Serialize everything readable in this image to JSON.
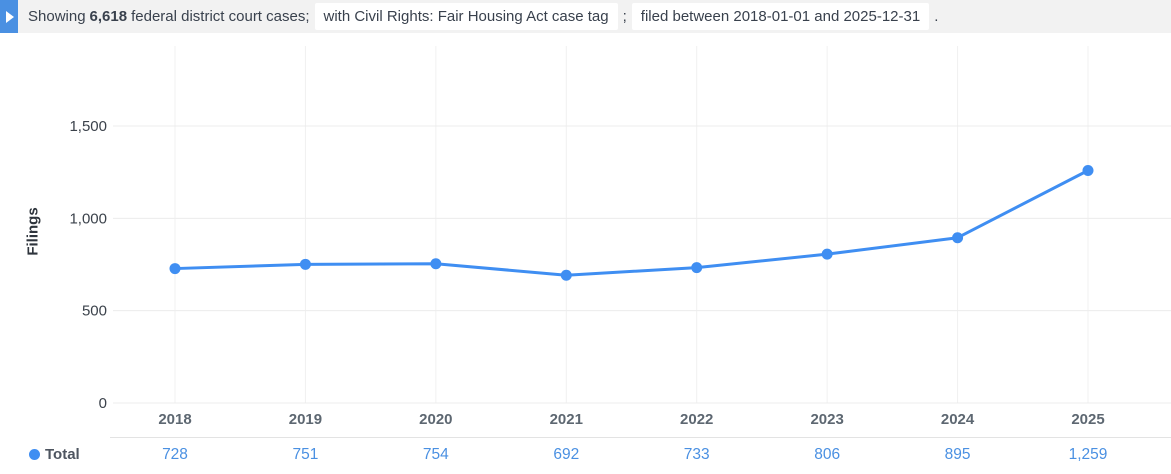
{
  "header": {
    "play_icon": "caret-right-icon",
    "prefix": "Showing",
    "count": "6,618",
    "suffix": "federal district court cases;",
    "tag_filter": "with Civil Rights: Fair Housing Act case tag",
    "separator": ";",
    "date_filter": "filed between 2018-01-01 and 2025-12-31",
    "terminator": "."
  },
  "chart_data": {
    "type": "line",
    "title": "",
    "xlabel": "",
    "ylabel": "Filings",
    "categories": [
      "2018",
      "2019",
      "2020",
      "2021",
      "2022",
      "2023",
      "2024",
      "2025"
    ],
    "series": [
      {
        "name": "Total",
        "values": [
          728,
          751,
          754,
          692,
          733,
          806,
          895,
          1259
        ]
      }
    ],
    "ylim": [
      0,
      1500
    ],
    "yticks": [
      0,
      500,
      1000,
      1500
    ],
    "ytick_labels": [
      "0",
      "500",
      "1,000",
      "1,500"
    ],
    "grid": true,
    "legend_position": "bottom-left",
    "line_color": "#3f8ef2",
    "point_color": "#3f8ef2"
  },
  "table": {
    "series_label": "Total",
    "values": [
      "728",
      "751",
      "754",
      "692",
      "733",
      "806",
      "895",
      "1,259"
    ]
  },
  "colors": {
    "header_bg": "#f2f2f2",
    "header_button": "#4a90e2",
    "value_link": "#4a90e2",
    "grid_h": "#ececec",
    "grid_v": "#f0f0f0"
  }
}
